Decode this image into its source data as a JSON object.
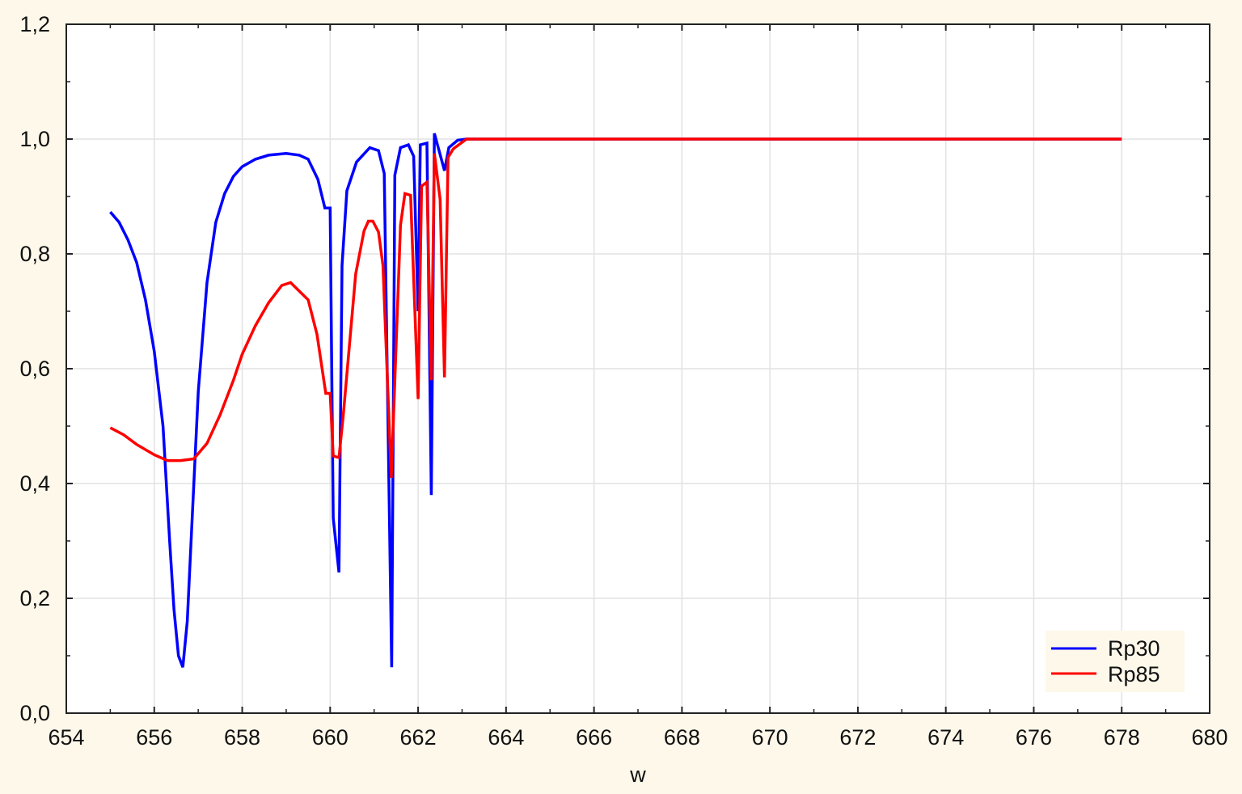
{
  "chart_data": {
    "type": "line",
    "title": "",
    "xlabel": "w",
    "ylabel": "",
    "xlim": [
      654,
      680
    ],
    "ylim": [
      0,
      1.2
    ],
    "xticks": [
      "654",
      "656",
      "658",
      "660",
      "662",
      "664",
      "666",
      "668",
      "670",
      "672",
      "674",
      "676",
      "678",
      "680"
    ],
    "yticks": [
      "0,0",
      "0,2",
      "0,4",
      "0,6",
      "0,8",
      "1,0",
      "1,2"
    ],
    "grid": true,
    "legend_position": "bottom-right",
    "series": [
      {
        "name": "Rp30",
        "color": "#0000ff",
        "points": [
          [
            655.0,
            0.873
          ],
          [
            655.2,
            0.855
          ],
          [
            655.4,
            0.825
          ],
          [
            655.6,
            0.785
          ],
          [
            655.8,
            0.72
          ],
          [
            656.0,
            0.63
          ],
          [
            656.2,
            0.5
          ],
          [
            656.35,
            0.3
          ],
          [
            656.45,
            0.18
          ],
          [
            656.55,
            0.1
          ],
          [
            656.65,
            0.08
          ],
          [
            656.75,
            0.16
          ],
          [
            656.85,
            0.32
          ],
          [
            657.0,
            0.56
          ],
          [
            657.2,
            0.75
          ],
          [
            657.4,
            0.855
          ],
          [
            657.6,
            0.905
          ],
          [
            657.8,
            0.935
          ],
          [
            658.0,
            0.952
          ],
          [
            658.3,
            0.965
          ],
          [
            658.6,
            0.972
          ],
          [
            659.0,
            0.975
          ],
          [
            659.3,
            0.972
          ],
          [
            659.5,
            0.965
          ],
          [
            659.72,
            0.93
          ],
          [
            659.88,
            0.88
          ],
          [
            660.0,
            0.88
          ],
          [
            660.07,
            0.34
          ],
          [
            660.2,
            0.245
          ],
          [
            660.27,
            0.78
          ],
          [
            660.38,
            0.91
          ],
          [
            660.6,
            0.96
          ],
          [
            660.9,
            0.985
          ],
          [
            661.1,
            0.98
          ],
          [
            661.23,
            0.94
          ],
          [
            661.4,
            0.08
          ],
          [
            661.47,
            0.937
          ],
          [
            661.6,
            0.985
          ],
          [
            661.78,
            0.99
          ],
          [
            661.9,
            0.97
          ],
          [
            662.0,
            0.7
          ],
          [
            662.05,
            0.99
          ],
          [
            662.2,
            0.993
          ],
          [
            662.3,
            0.38
          ],
          [
            662.37,
            1.01
          ],
          [
            662.6,
            0.945
          ],
          [
            662.7,
            0.985
          ],
          [
            662.9,
            0.998
          ],
          [
            663.1,
            1.0
          ],
          [
            670.0,
            1.0
          ],
          [
            678.0,
            1.0
          ]
        ]
      },
      {
        "name": "Rp85",
        "color": "#ff0000",
        "points": [
          [
            655.0,
            0.497
          ],
          [
            655.3,
            0.485
          ],
          [
            655.6,
            0.468
          ],
          [
            656.0,
            0.45
          ],
          [
            656.3,
            0.44
          ],
          [
            656.6,
            0.44
          ],
          [
            656.9,
            0.443
          ],
          [
            657.2,
            0.47
          ],
          [
            657.5,
            0.52
          ],
          [
            657.8,
            0.58
          ],
          [
            658.0,
            0.625
          ],
          [
            658.3,
            0.675
          ],
          [
            658.6,
            0.715
          ],
          [
            658.9,
            0.745
          ],
          [
            659.1,
            0.75
          ],
          [
            659.3,
            0.735
          ],
          [
            659.5,
            0.72
          ],
          [
            659.7,
            0.66
          ],
          [
            659.9,
            0.557
          ],
          [
            660.0,
            0.557
          ],
          [
            660.07,
            0.448
          ],
          [
            660.2,
            0.445
          ],
          [
            660.3,
            0.52
          ],
          [
            660.58,
            0.765
          ],
          [
            660.77,
            0.84
          ],
          [
            660.87,
            0.857
          ],
          [
            660.97,
            0.857
          ],
          [
            661.1,
            0.838
          ],
          [
            661.2,
            0.78
          ],
          [
            661.39,
            0.41
          ],
          [
            661.6,
            0.85
          ],
          [
            661.7,
            0.905
          ],
          [
            661.83,
            0.902
          ],
          [
            662.0,
            0.547
          ],
          [
            662.08,
            0.918
          ],
          [
            662.2,
            0.925
          ],
          [
            662.3,
            0.58
          ],
          [
            662.37,
            0.975
          ],
          [
            662.5,
            0.895
          ],
          [
            662.6,
            0.585
          ],
          [
            662.68,
            0.968
          ],
          [
            662.8,
            0.983
          ],
          [
            663.1,
            1.0
          ],
          [
            670.0,
            1.0
          ],
          [
            678.0,
            1.0
          ]
        ]
      }
    ]
  }
}
